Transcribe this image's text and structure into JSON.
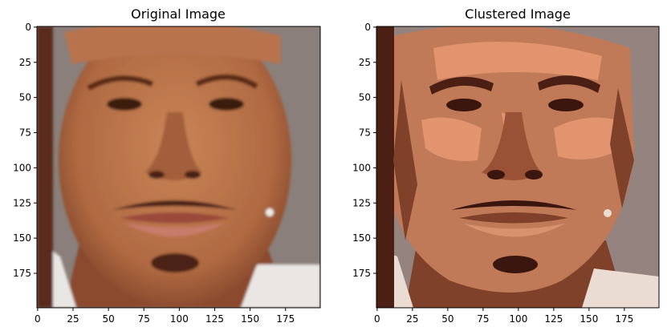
{
  "chart_data": [
    {
      "type": "image",
      "title": "Original Image",
      "xlim": [
        0,
        199
      ],
      "ylim": [
        199,
        0
      ],
      "xticks": [
        0,
        25,
        50,
        75,
        100,
        125,
        150,
        175
      ],
      "yticks": [
        0,
        25,
        50,
        75,
        100,
        125,
        150,
        175
      ],
      "grid": false,
      "colors": {
        "skin": "#b8734e",
        "skin_dark": "#7d4026",
        "background": "#8a7f7b",
        "shirt": "#e6e3e0"
      }
    },
    {
      "type": "image",
      "title": "Clustered Image",
      "xlim": [
        0,
        199
      ],
      "ylim": [
        199,
        0
      ],
      "xticks": [
        0,
        25,
        50,
        75,
        100,
        125,
        150,
        175
      ],
      "yticks": [
        0,
        25,
        50,
        75,
        100,
        125,
        150,
        175
      ],
      "grid": false,
      "colors": {
        "skin": "#c17a58",
        "skin_light": "#e1946d",
        "skin_dark": "#7f412a",
        "shadow": "#4b1f14",
        "background": "#94837e",
        "shirt": "#eadcd2"
      }
    }
  ]
}
